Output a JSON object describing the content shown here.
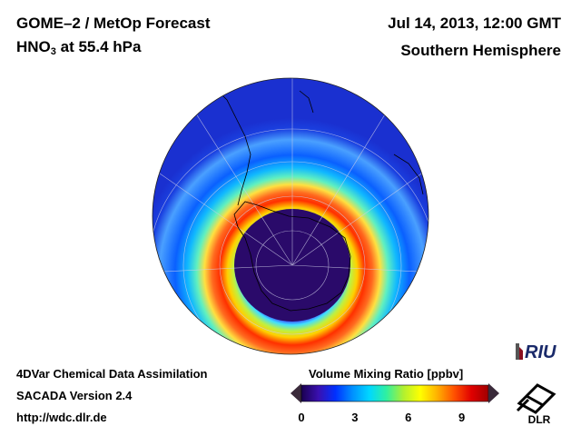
{
  "header": {
    "title_line1": "GOME–2 / MetOp Forecast",
    "species_main": "HNO",
    "species_sub": "3",
    "species_rest": " at 55.4 hPa",
    "date": "Jul 14, 2013, 12:00 GMT",
    "region": "Southern Hemisphere"
  },
  "footer": {
    "line1": "4DVar Chemical Data Assimilation",
    "line2": "SACADA Version 2.4",
    "line3": "http://wdc.dlr.de"
  },
  "colorbar": {
    "title": "Volume Mixing Ratio [ppbv]",
    "min": 0,
    "max": 10.5,
    "ticks": [
      "0",
      "3",
      "6",
      "9"
    ],
    "tick_values": [
      0,
      3,
      6,
      9
    ],
    "colors": [
      "#1a0050",
      "#3a10b0",
      "#0030ff",
      "#0090ff",
      "#00d8ff",
      "#30f0a0",
      "#b0f030",
      "#ffff00",
      "#ffb000",
      "#ff5000",
      "#e00000",
      "#a00000"
    ]
  },
  "logos": {
    "riu": "RIU",
    "dlr": "DLR"
  },
  "map": {
    "projection": "orthographic south polar",
    "field": "HNO3 volume mixing ratio"
  }
}
